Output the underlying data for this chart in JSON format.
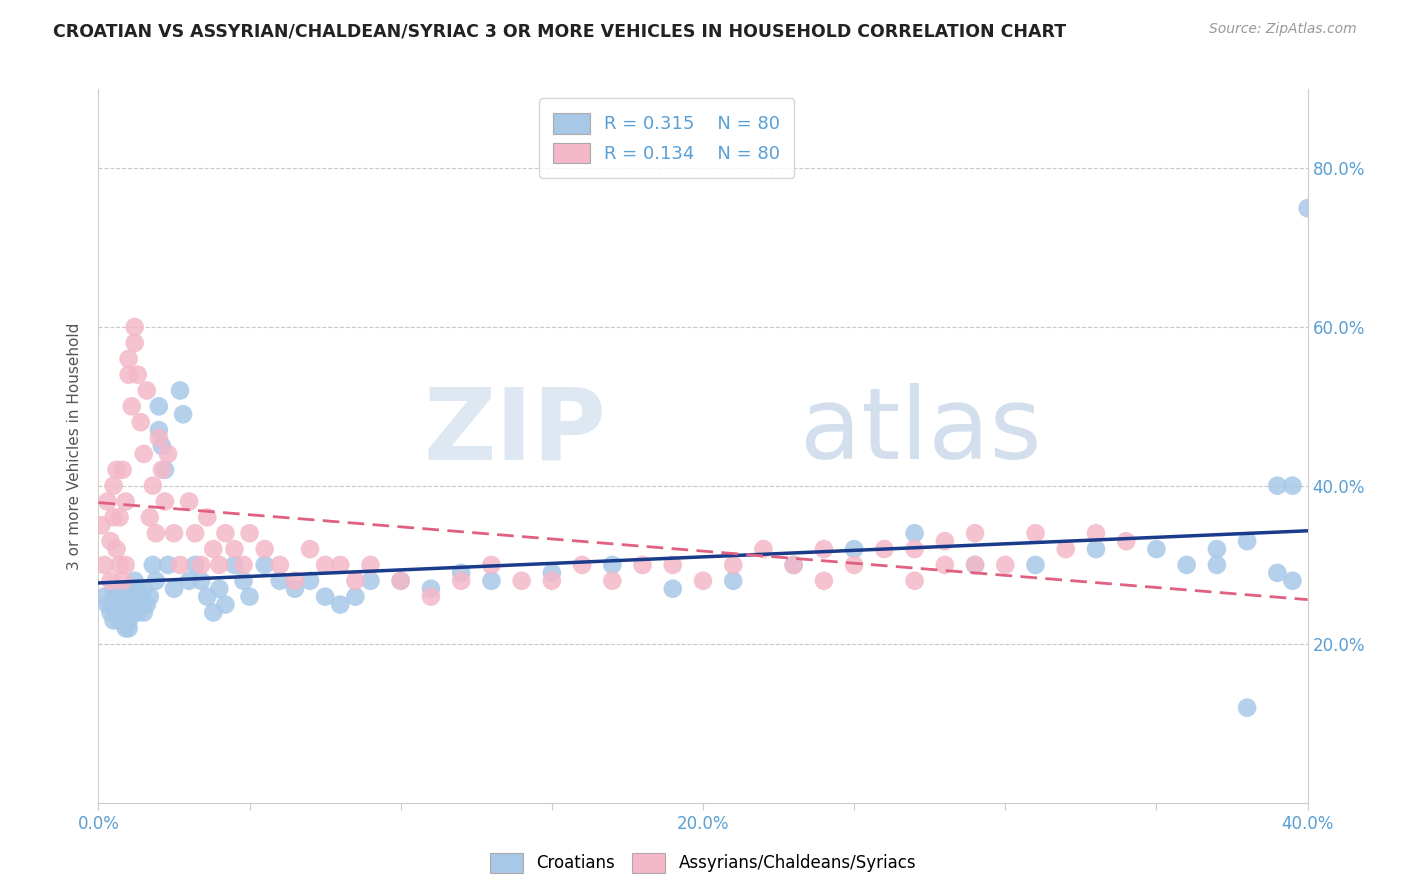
{
  "title": "CROATIAN VS ASSYRIAN/CHALDEAN/SYRIAC 3 OR MORE VEHICLES IN HOUSEHOLD CORRELATION CHART",
  "source": "Source: ZipAtlas.com",
  "ylabel": "3 or more Vehicles in Household",
  "xlim": [
    0.0,
    0.4
  ],
  "ylim": [
    0.0,
    0.9
  ],
  "croatians_R": 0.315,
  "assyrians_R": 0.134,
  "N": 80,
  "blue_scatter_color": "#a8c8e8",
  "pink_scatter_color": "#f4b8c8",
  "blue_line_color": "#1a3a8a",
  "pink_line_color": "#e06080",
  "right_tick_color": "#5a9fd4",
  "bottom_tick_color": "#5a9fd4",
  "watermark_zip_color": "#d8e4f0",
  "watermark_atlas_color": "#c8d8e8",
  "cr_x": [
    0.002,
    0.003,
    0.004,
    0.005,
    0.005,
    0.006,
    0.006,
    0.007,
    0.007,
    0.008,
    0.008,
    0.009,
    0.009,
    0.01,
    0.01,
    0.01,
    0.01,
    0.01,
    0.012,
    0.012,
    0.013,
    0.013,
    0.014,
    0.015,
    0.015,
    0.016,
    0.017,
    0.018,
    0.019,
    0.02,
    0.02,
    0.021,
    0.022,
    0.023,
    0.025,
    0.027,
    0.028,
    0.03,
    0.032,
    0.034,
    0.036,
    0.038,
    0.04,
    0.042,
    0.045,
    0.048,
    0.05,
    0.055,
    0.06,
    0.065,
    0.07,
    0.075,
    0.08,
    0.085,
    0.09,
    0.1,
    0.11,
    0.12,
    0.13,
    0.15,
    0.17,
    0.19,
    0.21,
    0.23,
    0.25,
    0.27,
    0.29,
    0.31,
    0.33,
    0.35,
    0.36,
    0.37,
    0.37,
    0.38,
    0.38,
    0.39,
    0.39,
    0.395,
    0.395,
    0.4
  ],
  "cr_y": [
    0.26,
    0.25,
    0.24,
    0.27,
    0.23,
    0.26,
    0.24,
    0.25,
    0.23,
    0.27,
    0.25,
    0.24,
    0.22,
    0.26,
    0.25,
    0.24,
    0.23,
    0.22,
    0.28,
    0.25,
    0.27,
    0.24,
    0.26,
    0.27,
    0.24,
    0.25,
    0.26,
    0.3,
    0.28,
    0.5,
    0.47,
    0.45,
    0.42,
    0.3,
    0.27,
    0.52,
    0.49,
    0.28,
    0.3,
    0.28,
    0.26,
    0.24,
    0.27,
    0.25,
    0.3,
    0.28,
    0.26,
    0.3,
    0.28,
    0.27,
    0.28,
    0.26,
    0.25,
    0.26,
    0.28,
    0.28,
    0.27,
    0.29,
    0.28,
    0.29,
    0.3,
    0.27,
    0.28,
    0.3,
    0.32,
    0.34,
    0.3,
    0.3,
    0.32,
    0.32,
    0.3,
    0.32,
    0.3,
    0.33,
    0.12,
    0.4,
    0.29,
    0.4,
    0.28,
    0.75
  ],
  "as_x": [
    0.001,
    0.002,
    0.003,
    0.004,
    0.004,
    0.005,
    0.005,
    0.006,
    0.006,
    0.007,
    0.007,
    0.008,
    0.008,
    0.009,
    0.009,
    0.01,
    0.01,
    0.011,
    0.012,
    0.012,
    0.013,
    0.014,
    0.015,
    0.016,
    0.017,
    0.018,
    0.019,
    0.02,
    0.021,
    0.022,
    0.023,
    0.025,
    0.027,
    0.03,
    0.032,
    0.034,
    0.036,
    0.038,
    0.04,
    0.042,
    0.045,
    0.048,
    0.05,
    0.055,
    0.06,
    0.065,
    0.07,
    0.075,
    0.08,
    0.085,
    0.09,
    0.1,
    0.11,
    0.12,
    0.13,
    0.14,
    0.15,
    0.16,
    0.17,
    0.18,
    0.19,
    0.2,
    0.21,
    0.22,
    0.23,
    0.24,
    0.24,
    0.25,
    0.26,
    0.27,
    0.27,
    0.28,
    0.28,
    0.29,
    0.29,
    0.3,
    0.31,
    0.32,
    0.33,
    0.34
  ],
  "as_y": [
    0.35,
    0.3,
    0.38,
    0.33,
    0.28,
    0.4,
    0.36,
    0.42,
    0.32,
    0.36,
    0.3,
    0.42,
    0.28,
    0.38,
    0.3,
    0.54,
    0.56,
    0.5,
    0.6,
    0.58,
    0.54,
    0.48,
    0.44,
    0.52,
    0.36,
    0.4,
    0.34,
    0.46,
    0.42,
    0.38,
    0.44,
    0.34,
    0.3,
    0.38,
    0.34,
    0.3,
    0.36,
    0.32,
    0.3,
    0.34,
    0.32,
    0.3,
    0.34,
    0.32,
    0.3,
    0.28,
    0.32,
    0.3,
    0.3,
    0.28,
    0.3,
    0.28,
    0.26,
    0.28,
    0.3,
    0.28,
    0.28,
    0.3,
    0.28,
    0.3,
    0.3,
    0.28,
    0.3,
    0.32,
    0.3,
    0.32,
    0.28,
    0.3,
    0.32,
    0.32,
    0.28,
    0.3,
    0.33,
    0.3,
    0.34,
    0.3,
    0.34,
    0.32,
    0.34,
    0.33
  ]
}
